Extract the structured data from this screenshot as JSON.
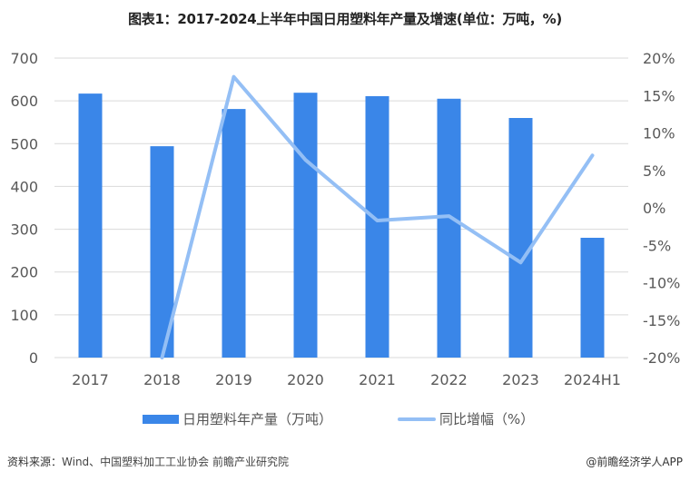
{
  "title": "图表1：2017-2024上半年中国日用塑料年产量及增速(单位：万吨，%)",
  "colors": {
    "bar": "#3a86e8",
    "line": "#94bff5",
    "grid": "#d9d9d9",
    "axis_text": "#595959"
  },
  "chart_data": {
    "type": "bar+line",
    "title": "图表1：2017-2024上半年中国日用塑料年产量及增速(单位：万吨，%)",
    "categories": [
      "2017",
      "2018",
      "2019",
      "2020",
      "2021",
      "2022",
      "2023",
      "2024H1"
    ],
    "series": [
      {
        "name": "日用塑料年产量（万吨）",
        "type": "bar",
        "axis": "left",
        "values": [
          617,
          494,
          581,
          619,
          611,
          605,
          560,
          280
        ]
      },
      {
        "name": "同比增幅（%）",
        "type": "line",
        "axis": "right",
        "values": [
          null,
          -20.0,
          17.5,
          6.4,
          -1.7,
          -1.1,
          -7.3,
          7.0
        ]
      }
    ],
    "left_axis": {
      "ylim": [
        0,
        700
      ],
      "ticks": [
        "0",
        "100",
        "200",
        "300",
        "400",
        "500",
        "600",
        "700"
      ]
    },
    "right_axis": {
      "ylim": [
        -20,
        20
      ],
      "ticks": [
        "-20%",
        "-15%",
        "-10%",
        "-5%",
        "0%",
        "5%",
        "10%",
        "15%",
        "20%"
      ]
    },
    "xlabel": "",
    "ylabel": "",
    "grid": true,
    "legend_position": "bottom"
  },
  "legend": {
    "bar_label": "日用塑料年产量（万吨）",
    "line_label": "同比增幅（%）"
  },
  "footer": {
    "source_prefix": "资料来源：",
    "source_text": "Wind、中国塑料加工工业协会 前瞻产业研究院",
    "credit": "@前瞻经济学人APP"
  }
}
